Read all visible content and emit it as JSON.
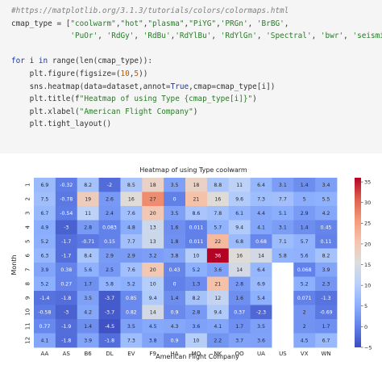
{
  "code": {
    "lines": [
      {
        "kind": "comment",
        "text": "#https://matplotlib.org/3.1.3/tutorials/colors/colormaps.html"
      },
      {
        "kind": "code",
        "text": "cmap_type = [\"coolwarm\",\"hot\",\"plasma\",\"PiYG\",'PRGn', 'BrBG',"
      },
      {
        "kind": "code",
        "text": "             'PuOr', 'RdGy', 'RdBu','RdYlBu', 'RdYlGn', 'Spectral', 'bwr', 'seismic']"
      },
      {
        "kind": "blank",
        "text": ""
      },
      {
        "kind": "code",
        "text": "for i in range(len(cmap_type)):"
      },
      {
        "kind": "code",
        "text": "    plt.figure(figsize=(10,5))"
      },
      {
        "kind": "code",
        "text": "    sns.heatmap(data=dataset,annot=True,cmap=cmap_type[i])"
      },
      {
        "kind": "code",
        "text": "    plt.title(f\"Heatmap of using Type {cmap_type[i]}\")"
      },
      {
        "kind": "code",
        "text": "    plt.xlabel(\"American Flight Company\")"
      },
      {
        "kind": "code",
        "text": "    plt.tight_layout()"
      }
    ]
  },
  "chart_data": {
    "type": "heatmap",
    "title": "Heatmap of using Type coolwarm",
    "xlabel": "American Flight Company",
    "ylabel": "Month",
    "x_categories": [
      "AA",
      "AS",
      "B6",
      "DL",
      "EV",
      "F9",
      "HA",
      "MQ",
      "NK",
      "OO",
      "UA",
      "US",
      "VX",
      "WN"
    ],
    "y_categories": [
      "1",
      "2",
      "3",
      "4",
      "5",
      "6",
      "7",
      "8",
      "9",
      "10",
      "11",
      "12"
    ],
    "values": [
      [
        6.9,
        -0.32,
        8.2,
        -2,
        8.5,
        18,
        3.5,
        18,
        8.8,
        11,
        6.4,
        3.1,
        1.4,
        3.4
      ],
      [
        7.5,
        -0.78,
        19,
        2.6,
        16,
        27,
        0,
        21,
        16,
        9.6,
        7.3,
        7.7,
        5,
        5.5
      ],
      [
        6.7,
        -0.54,
        11,
        2.4,
        7.6,
        20,
        3.5,
        8.6,
        7.8,
        6.1,
        4.4,
        5.1,
        2.9,
        4.2
      ],
      [
        4.9,
        -3,
        2.8,
        0.083,
        4.8,
        13,
        1.6,
        0.011,
        5.7,
        9.4,
        4.1,
        3.1,
        1.4,
        0.45
      ],
      [
        5.2,
        -1.7,
        -0.71,
        0.15,
        7.7,
        13,
        1.8,
        0.011,
        22,
        6.8,
        0.68,
        7.1,
        5.7,
        0.11
      ],
      [
        6.3,
        -1.7,
        8.4,
        2.9,
        2.9,
        3.2,
        3.8,
        10,
        36,
        16,
        14,
        5.8,
        5.6,
        8.2
      ],
      [
        3.9,
        0.38,
        5.6,
        2.5,
        7.6,
        20,
        0.43,
        5.2,
        3.6,
        14,
        6.4,
        null,
        0.068,
        3.9
      ],
      [
        5.2,
        0.27,
        1.7,
        5.8,
        5.2,
        10,
        0,
        1.3,
        21,
        2.8,
        6.9,
        null,
        5.2,
        2.3
      ],
      [
        -1.4,
        -1.8,
        3.5,
        -3.7,
        0.85,
        9.4,
        1.4,
        8.2,
        12,
        1.6,
        5.4,
        null,
        0.071,
        -1.3
      ],
      [
        -0.58,
        -3,
        4.2,
        -3.7,
        0.82,
        14,
        0.9,
        2.8,
        9.4,
        0.37,
        -2.3,
        null,
        2,
        -0.69
      ],
      [
        0.77,
        -1.9,
        1.4,
        -4.5,
        3.5,
        4.5,
        4.3,
        3.6,
        4.1,
        1.7,
        3.5,
        null,
        2,
        1.7
      ],
      [
        4.1,
        -1.8,
        3.9,
        -1.8,
        7.3,
        3.8,
        0.9,
        10,
        2.2,
        3.7,
        3.6,
        null,
        4.5,
        6.7
      ]
    ],
    "colorbar": {
      "min": -5,
      "max": 36,
      "ticks": [
        -5,
        0,
        5,
        10,
        15,
        20,
        25,
        30,
        35
      ],
      "colormap": "coolwarm"
    }
  }
}
